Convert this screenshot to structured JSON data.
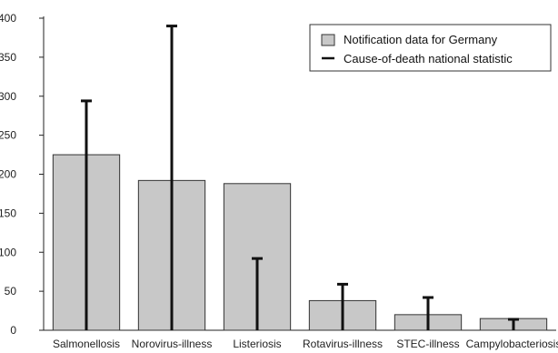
{
  "chart_data": {
    "type": "bar",
    "categories": [
      "Salmonellosis",
      "Norovirus-illness",
      "Listeriosis",
      "Rotavirus-illness",
      "STEC-illness",
      "Campylobacteriosis"
    ],
    "series": [
      {
        "name": "Notification data for Germany",
        "kind": "bar",
        "color": "#c8c8c8",
        "values": [
          225,
          192,
          188,
          38,
          20,
          15
        ]
      },
      {
        "name": "Cause-of-death national statistic",
        "kind": "line",
        "color": "#111111",
        "values": [
          294,
          390,
          92,
          59,
          42,
          14
        ]
      }
    ],
    "yticks": [
      0,
      50,
      100,
      150,
      200,
      250,
      300,
      350,
      400
    ],
    "ylim": [
      0,
      400
    ],
    "xlabel": "",
    "ylabel": "",
    "title": "",
    "legend": "top-right",
    "grid": false
  }
}
